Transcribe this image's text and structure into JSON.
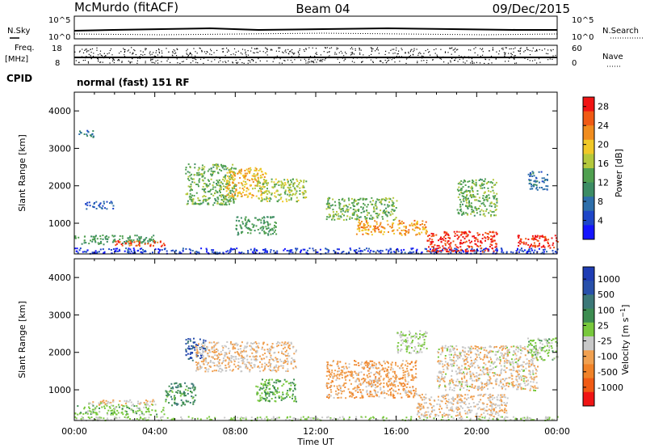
{
  "header": {
    "station": "McMurdo (fitACF)",
    "beam": "Beam 04",
    "date": "09/Dec/2015"
  },
  "top_panels": {
    "nsky_label": "N.Sky",
    "nsearch_label": "N.Search",
    "noise_ticks": [
      "10^5",
      "10^0"
    ],
    "freq_label": "Freq.",
    "freq_unit": "[MHz]",
    "freq_ticks": [
      "18",
      "8"
    ],
    "nave_label": "Nave",
    "nave_ticks": [
      "60",
      "0"
    ],
    "cpid_label": "CPID",
    "cpid_text": "normal (fast) 151 RF"
  },
  "colors": {
    "power_scale": [
      "#1414ff",
      "#1e46c8",
      "#2d6eaa",
      "#3c8c64",
      "#50a050",
      "#b4c83c",
      "#f0c828",
      "#f08c1e",
      "#f05a14",
      "#f01414"
    ],
    "velocity_scale": [
      "#1e3cb4",
      "#2850aa",
      "#3c7878",
      "#3c8c50",
      "#78c83c",
      "#c8c8c8",
      "#f0a050",
      "#f08228",
      "#f05a14",
      "#f01414"
    ]
  },
  "chart_data": [
    {
      "type": "heatmap",
      "title": "",
      "xlabel": "",
      "ylabel": "Slant Range [km]",
      "xlim": [
        "00:00",
        "24:00"
      ],
      "ylim": [
        180,
        4500
      ],
      "x_ticks": [
        "00:00",
        "04:00",
        "08:00",
        "12:00",
        "16:00",
        "20:00",
        "00:00"
      ],
      "y_ticks": [
        "1000",
        "2000",
        "3000",
        "4000"
      ],
      "colorbar": {
        "label": "Power [dB]",
        "ticks": [
          "4",
          "8",
          "12",
          "16",
          "20",
          "24",
          "28"
        ],
        "range": [
          0,
          30
        ]
      },
      "scatter_regions": [
        {
          "t": [
            0.0,
            4.0
          ],
          "range": [
            450,
            700
          ],
          "value": 12
        },
        {
          "t": [
            2.0,
            4.5
          ],
          "range": [
            400,
            550
          ],
          "value": 26
        },
        {
          "t": [
            0.0,
            24.0
          ],
          "range": [
            200,
            350
          ],
          "value": 4
        },
        {
          "t": [
            0.5,
            2.0
          ],
          "range": [
            1400,
            1600
          ],
          "value": 6
        },
        {
          "t": [
            0.2,
            1.0
          ],
          "range": [
            3300,
            3500
          ],
          "value": 8
        },
        {
          "t": [
            5.5,
            8.0
          ],
          "range": [
            1500,
            2600
          ],
          "value": 14
        },
        {
          "t": [
            7.5,
            9.5
          ],
          "range": [
            1700,
            2500
          ],
          "value": 20
        },
        {
          "t": [
            9.0,
            11.5
          ],
          "range": [
            1600,
            2200
          ],
          "value": 16
        },
        {
          "t": [
            8.0,
            10.0
          ],
          "range": [
            700,
            1200
          ],
          "value": 12
        },
        {
          "t": [
            12.5,
            16.0
          ],
          "range": [
            1100,
            1700
          ],
          "value": 14
        },
        {
          "t": [
            14.0,
            17.5
          ],
          "range": [
            700,
            1100
          ],
          "value": 22
        },
        {
          "t": [
            17.5,
            21.0
          ],
          "range": [
            250,
            800
          ],
          "value": 28
        },
        {
          "t": [
            19.0,
            21.0
          ],
          "range": [
            1200,
            2200
          ],
          "value": 14
        },
        {
          "t": [
            22.0,
            24.0
          ],
          "range": [
            350,
            700
          ],
          "value": 28
        },
        {
          "t": [
            22.5,
            23.5
          ],
          "range": [
            1900,
            2400
          ],
          "value": 8
        }
      ]
    },
    {
      "type": "heatmap",
      "title": "",
      "xlabel": "Time UT",
      "ylabel": "Slant Range [km]",
      "xlim": [
        "00:00",
        "24:00"
      ],
      "ylim": [
        180,
        4500
      ],
      "x_ticks": [
        "00:00",
        "04:00",
        "08:00",
        "12:00",
        "16:00",
        "20:00",
        "00:00"
      ],
      "y_ticks": [
        "1000",
        "2000",
        "3000",
        "4000"
      ],
      "colorbar": {
        "label": "Velocity [m s^-1]",
        "ticks": [
          "1000",
          "500",
          "100",
          "25",
          "-25",
          "-100",
          "-500",
          "-1000"
        ],
        "range": [
          -1000,
          1000
        ]
      },
      "scatter_regions": [
        {
          "t": [
            0.0,
            4.5
          ],
          "range": [
            350,
            600
          ],
          "value": 80
        },
        {
          "t": [
            0.5,
            4.0
          ],
          "range": [
            600,
            750
          ],
          "value": -150
        },
        {
          "t": [
            0.0,
            24.0
          ],
          "range": [
            200,
            300
          ],
          "value": 0
        },
        {
          "t": [
            5.5,
            6.5
          ],
          "range": [
            1800,
            2400
          ],
          "value": 700
        },
        {
          "t": [
            6.0,
            11.0
          ],
          "range": [
            1500,
            2300
          ],
          "value": -200
        },
        {
          "t": [
            4.5,
            6.0
          ],
          "range": [
            600,
            1200
          ],
          "value": 300
        },
        {
          "t": [
            9.0,
            11.0
          ],
          "range": [
            700,
            1300
          ],
          "value": 200
        },
        {
          "t": [
            12.5,
            17.0
          ],
          "range": [
            800,
            1800
          ],
          "value": -300
        },
        {
          "t": [
            17.0,
            21.5
          ],
          "range": [
            300,
            900
          ],
          "value": -200
        },
        {
          "t": [
            18.0,
            23.0
          ],
          "range": [
            1000,
            2200
          ],
          "value": -150
        },
        {
          "t": [
            16.0,
            17.5
          ],
          "range": [
            2000,
            2600
          ],
          "value": 0
        },
        {
          "t": [
            22.5,
            24.0
          ],
          "range": [
            1800,
            2400
          ],
          "value": 60
        }
      ]
    }
  ]
}
